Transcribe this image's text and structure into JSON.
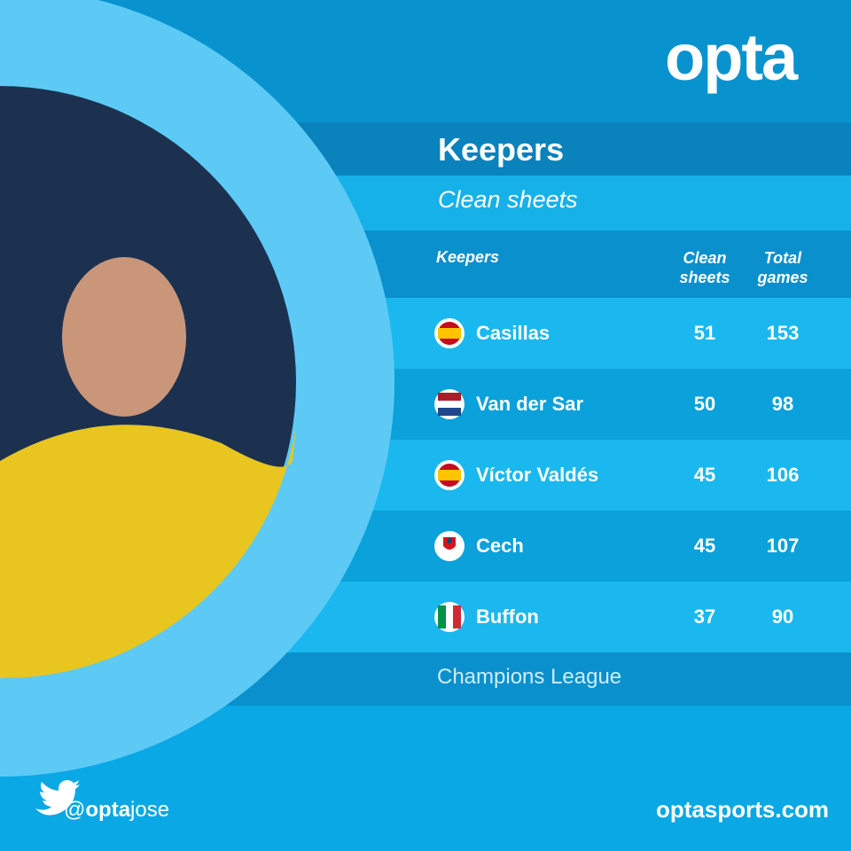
{
  "logo": "opta",
  "title": "Keepers",
  "subtitle": "Clean sheets",
  "table": {
    "columns": [
      "Keepers",
      "Clean sheets",
      "Total games"
    ],
    "rows": [
      [
        "Casillas",
        51,
        153
      ],
      [
        "Van der Sar",
        50,
        98
      ],
      [
        "Víctor Valdés",
        45,
        106
      ],
      [
        "Cech",
        45,
        107
      ],
      [
        "Buffon",
        37,
        90
      ]
    ]
  },
  "competition": "Champions League",
  "footer": {
    "handle_parts": [
      "@",
      "opta",
      "jose"
    ],
    "website": "optasports.com"
  }
}
